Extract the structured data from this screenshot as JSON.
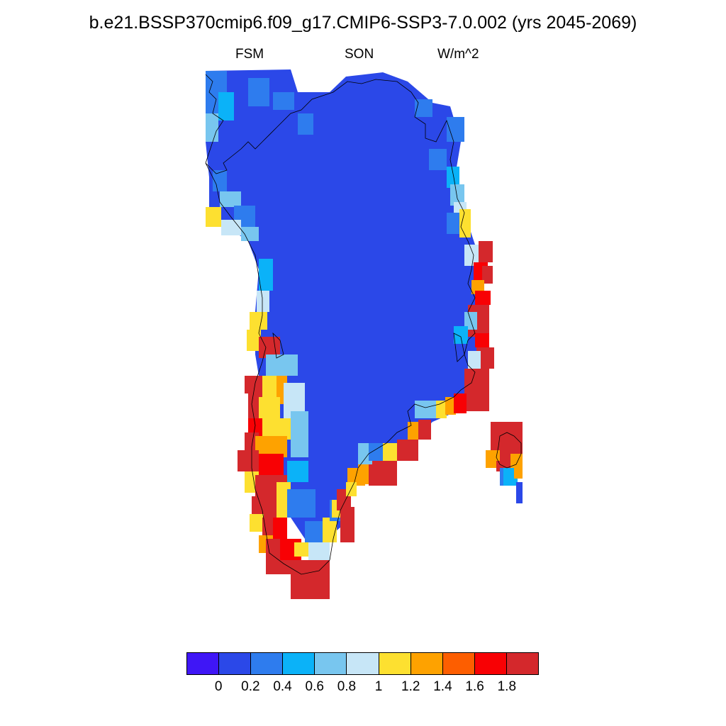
{
  "title": "b.e21.BSSP370cmip6.f09_g17.CMIP6-SSP3-7.0.002 (yrs 2045-2069)",
  "subtitle": {
    "left": "FSM",
    "center": "SON",
    "right": "W/m^2"
  },
  "colorbar": {
    "colors": [
      "#3f16f6",
      "#2b48e8",
      "#2e7cee",
      "#0bb2f8",
      "#78c6ef",
      "#c7e6f7",
      "#fde030",
      "#fea200",
      "#fd5e00",
      "#f80104",
      "#d4282c"
    ],
    "tick_labels": [
      "0",
      "0.2",
      "0.4",
      "0.6",
      "0.8",
      "1",
      "1.2",
      "1.4",
      "1.6",
      "1.8"
    ]
  },
  "map": {
    "region": "Greenland",
    "field": "FSM",
    "season": "SON",
    "units": "W/m^2",
    "legend_placement": "bottom-center",
    "colors": {
      "interior": "#2b48e8",
      "coast_low": "#2e7cee",
      "coast_cyan": "#0bb2f8",
      "coast_light": "#78c6ef",
      "coast_pale": "#c7e6f7",
      "coast_yellow": "#fde030",
      "coast_orange": "#fea200",
      "coast_red": "#f80104",
      "coast_darkred": "#d4282c"
    }
  }
}
